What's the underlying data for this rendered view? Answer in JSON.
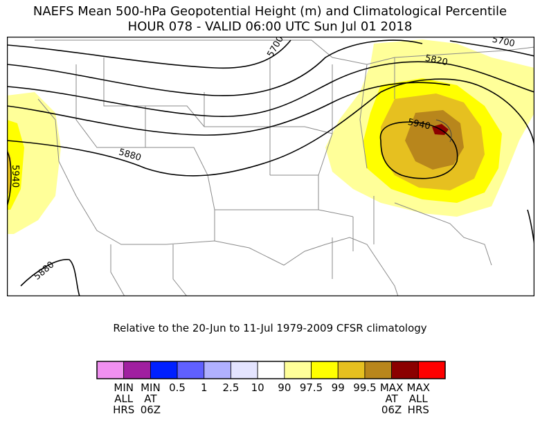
{
  "title_line1": "NAEFS Mean 500-hPa Geopotential Height (m) and Climatological Percentile",
  "title_line2": "HOUR 078 - VALID 06:00 UTC Sun Jul 01 2018",
  "subtitle": "Relative to the 20-Jun to 11-Jul 1979-2009 CFSR climatology",
  "contours": [
    "5700",
    "5820",
    "5880",
    "5940"
  ],
  "contour_labels": {
    "c5700_west": "5700",
    "c5700_east": "5700",
    "c5820_label": "5820",
    "c5880_west": "5880",
    "c5880_sw": "5880",
    "c5940_west": "5940",
    "c5940_east": "5940"
  },
  "legend": {
    "colors": [
      "#f090f0",
      "#a020a0",
      "#0020ff",
      "#6060ff",
      "#b0b0ff",
      "#e4e4ff",
      "#ffffff",
      "#ffff99",
      "#ffff00",
      "#e6c020",
      "#b8861c",
      "#8b0000",
      "#ff0000"
    ],
    "labels": [
      {
        "l1": "MIN",
        "l2": "ALL",
        "l3": "HRS"
      },
      {
        "l1": "MIN",
        "l2": "AT",
        "l3": "06Z"
      },
      {
        "l1": "0.5",
        "l2": "",
        "l3": ""
      },
      {
        "l1": "1",
        "l2": "",
        "l3": ""
      },
      {
        "l1": "2.5",
        "l2": "",
        "l3": ""
      },
      {
        "l1": "10",
        "l2": "",
        "l3": ""
      },
      {
        "l1": "90",
        "l2": "",
        "l3": ""
      },
      {
        "l1": "97.5",
        "l2": "",
        "l3": ""
      },
      {
        "l1": "99",
        "l2": "",
        "l3": ""
      },
      {
        "l1": "99.5",
        "l2": "",
        "l3": ""
      },
      {
        "l1": "MAX",
        "l2": "AT",
        "l3": "06Z"
      },
      {
        "l1": "MAX",
        "l2": "ALL",
        "l3": "HRS"
      }
    ]
  }
}
